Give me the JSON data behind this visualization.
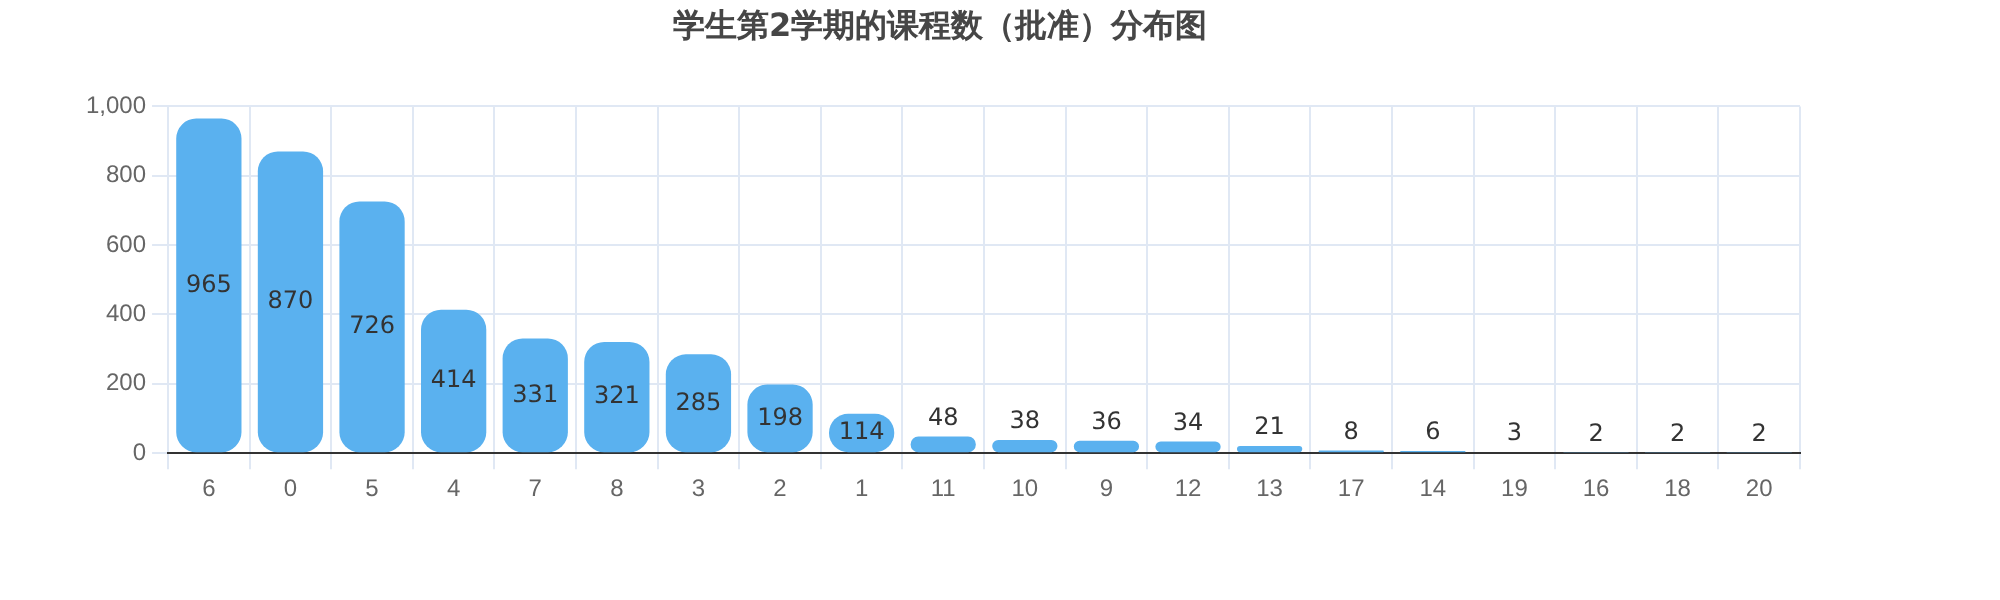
{
  "chart_data": {
    "type": "bar",
    "title": "学生第2学期的课程数（批准）分布图",
    "categories": [
      "6",
      "0",
      "5",
      "4",
      "7",
      "8",
      "3",
      "2",
      "1",
      "11",
      "10",
      "9",
      "12",
      "13",
      "17",
      "14",
      "19",
      "16",
      "18",
      "20"
    ],
    "values": [
      965,
      870,
      726,
      414,
      331,
      321,
      285,
      198,
      114,
      48,
      38,
      36,
      34,
      21,
      8,
      6,
      3,
      2,
      2,
      2
    ],
    "color": "#5ab1ef",
    "ylim": [
      0,
      1000
    ],
    "yticks": [
      0,
      200,
      400,
      600,
      800,
      {
        "value": 1000,
        "label": "1,000"
      }
    ],
    "grid": true,
    "data_labels": true
  }
}
